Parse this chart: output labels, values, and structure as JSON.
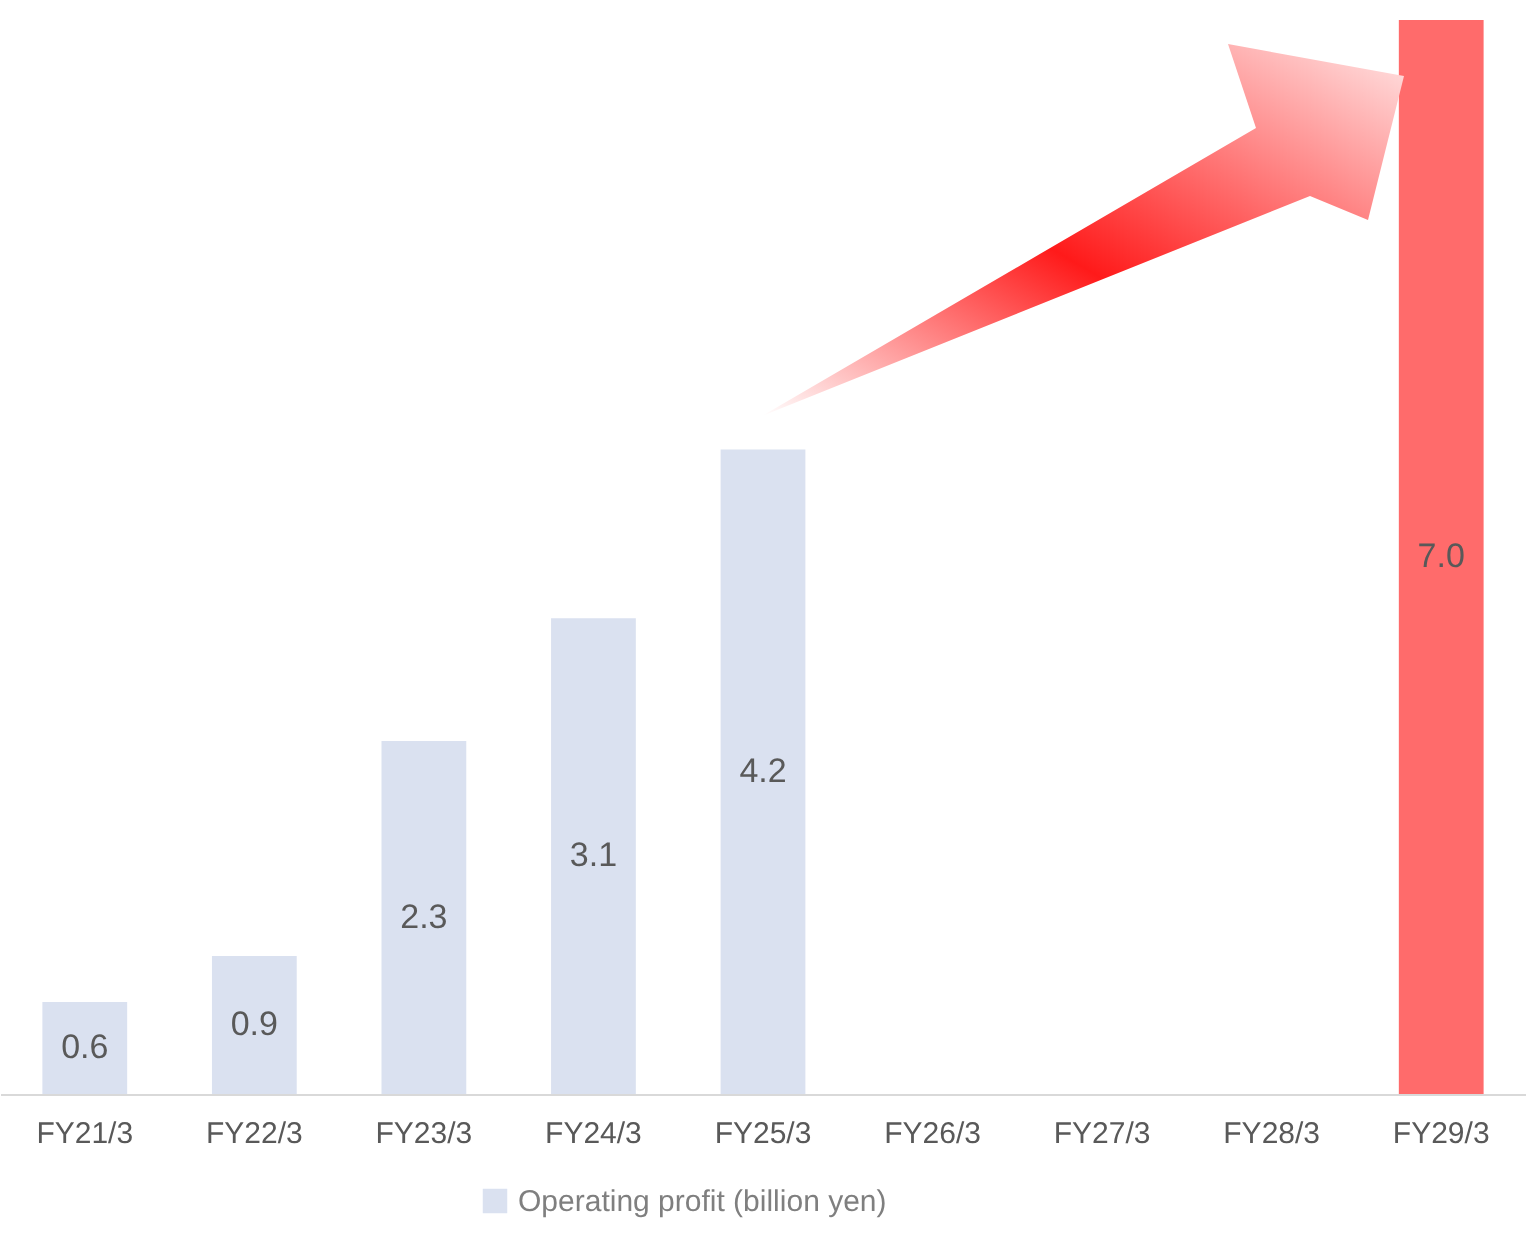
{
  "chart_data": {
    "type": "bar",
    "categories": [
      "FY21/3",
      "FY22/3",
      "FY23/3",
      "FY24/3",
      "FY25/3",
      "FY26/3",
      "FY27/3",
      "FY28/3",
      "FY29/3"
    ],
    "series": [
      {
        "name": "Operating profit (billion yen)",
        "color": "#dae1f0",
        "values": [
          0.6,
          0.9,
          2.3,
          3.1,
          4.2,
          null,
          null,
          null,
          7.0
        ],
        "colors": [
          "#dae1f0",
          "#dae1f0",
          "#dae1f0",
          "#dae1f0",
          "#dae1f0",
          "#dae1f0",
          "#dae1f0",
          "#dae1f0",
          "#ff6b6b"
        ],
        "value_labels": [
          "0.6",
          "0.9",
          "2.3",
          "3.1",
          "4.2",
          null,
          null,
          null,
          "7.0"
        ]
      }
    ],
    "legend": "bottom",
    "grid": false
  }
}
